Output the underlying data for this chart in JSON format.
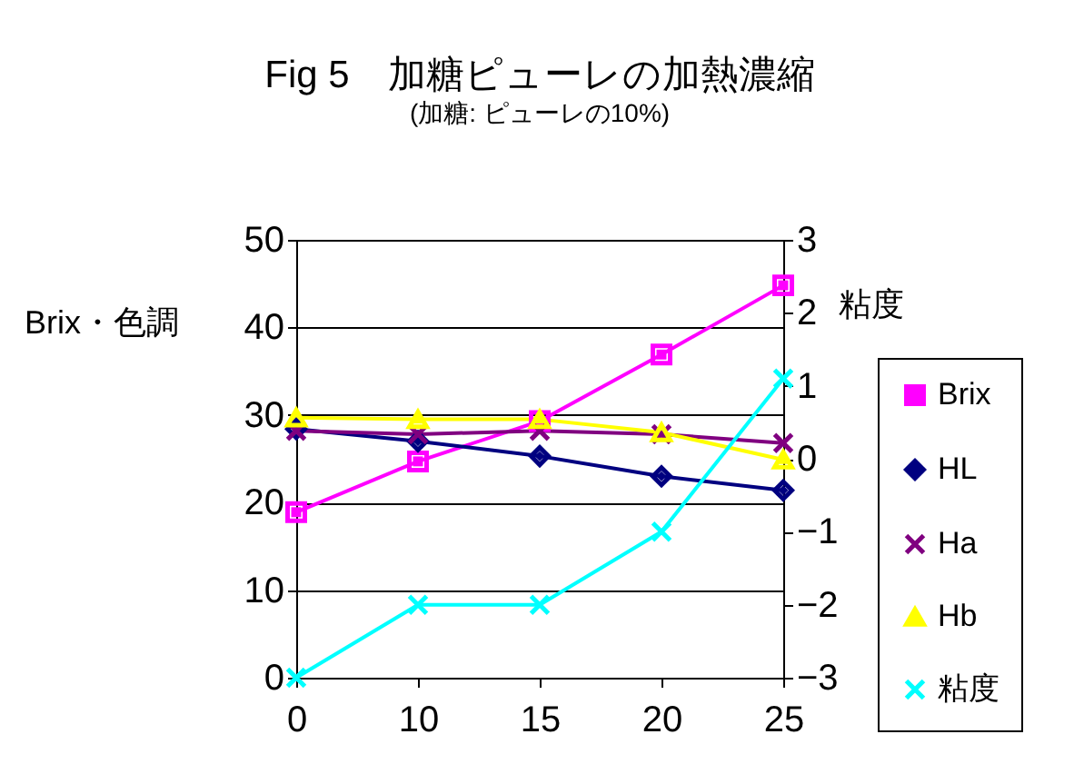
{
  "chart_data": {
    "type": "line",
    "title": "Fig 5　加糖ピューレの加熱濃縮",
    "subtitle": "(加糖: ピューレの10%)",
    "ylabel": "Brix・色調",
    "y2label": "粘度",
    "categories": [
      "0",
      "10",
      "15",
      "20",
      "25"
    ],
    "ylim": [
      0,
      50
    ],
    "yticks": [
      0,
      10,
      20,
      30,
      40,
      50
    ],
    "y2lim": [
      -3,
      3
    ],
    "y2ticks": [
      -3,
      -2,
      -1,
      0,
      1,
      2,
      3
    ],
    "grid": "y",
    "legend": "right",
    "series": [
      {
        "name": "Brix",
        "color": "#ff00ff",
        "marker": "square",
        "values": [
          18.9,
          24.7,
          29.3,
          36.9,
          44.8
        ]
      },
      {
        "name": "HL",
        "color": "#000080",
        "marker": "diamond",
        "values": [
          28.4,
          27.0,
          25.3,
          23.0,
          21.4
        ]
      },
      {
        "name": "Ha",
        "color": "#800080",
        "marker": "cross",
        "values": [
          28.2,
          27.8,
          28.2,
          27.8,
          26.8
        ]
      },
      {
        "name": "Hb",
        "color": "#ffff00",
        "marker": "triangle",
        "values": [
          29.7,
          29.5,
          29.5,
          28.0,
          24.9
        ]
      },
      {
        "name": "粘度",
        "color": "#00ffff",
        "marker": "cross",
        "axis": "y2",
        "values": [
          -3.0,
          -2.0,
          -2.0,
          -1.0,
          1.1
        ]
      }
    ]
  }
}
